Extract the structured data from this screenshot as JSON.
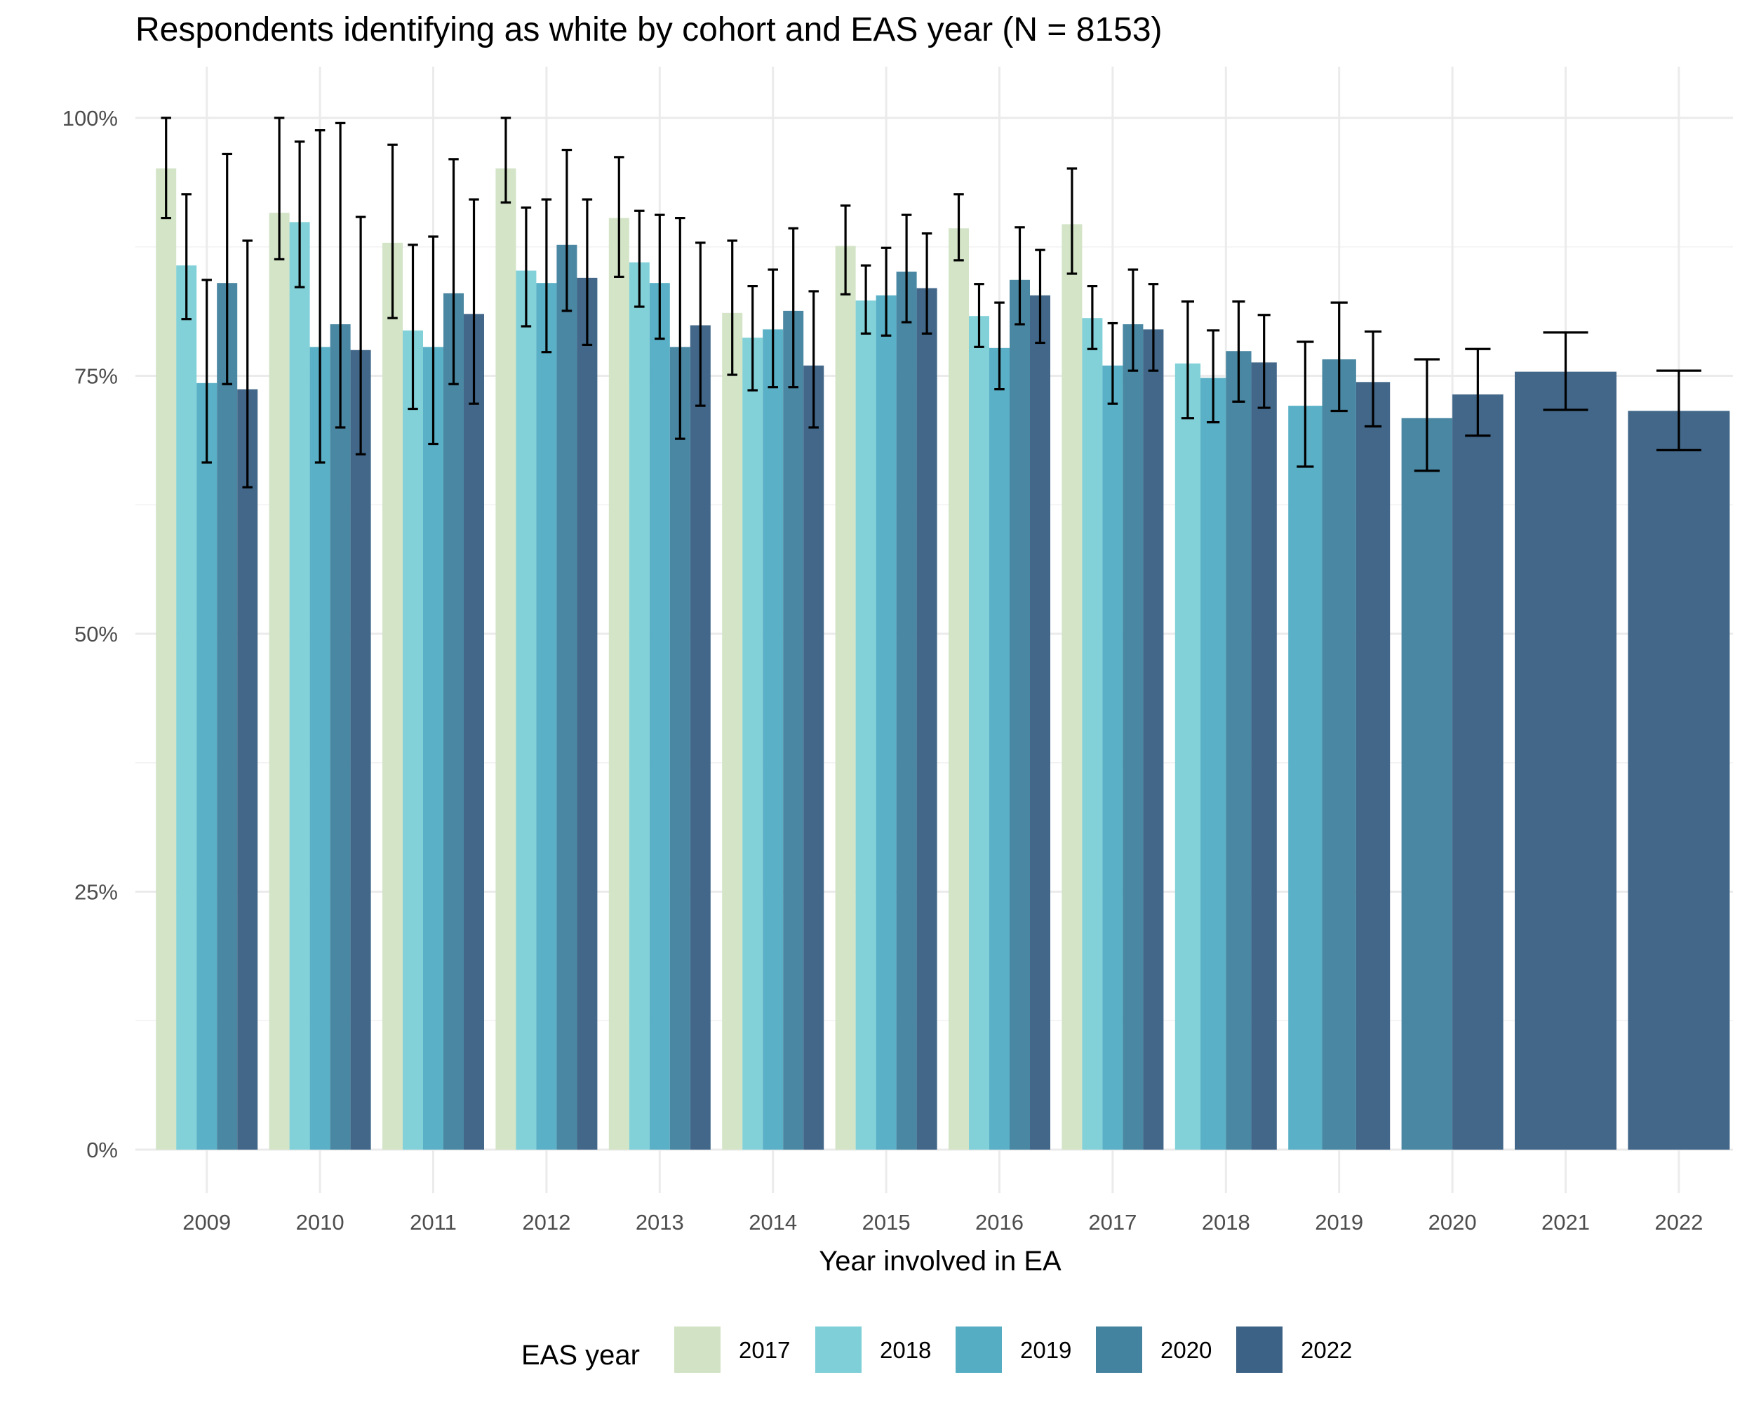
{
  "chart_data": {
    "type": "bar",
    "title": "Respondents identifying as white by cohort and EAS year (N = 8153)",
    "xlabel": "Year involved in EA",
    "ylabel": "",
    "ylim": [
      0,
      1
    ],
    "y_ticks": [
      {
        "value": 0,
        "label": "0%"
      },
      {
        "value": 0.25,
        "label": "25%"
      },
      {
        "value": 0.5,
        "label": "50%"
      },
      {
        "value": 0.75,
        "label": "75%"
      },
      {
        "value": 1.0,
        "label": "100%"
      }
    ],
    "grid": true,
    "legend": {
      "title": "EAS year",
      "position": "bottom"
    },
    "categories": [
      "2009",
      "2010",
      "2011",
      "2012",
      "2013",
      "2014",
      "2015",
      "2016",
      "2017",
      "2018",
      "2019",
      "2020",
      "2021",
      "2022"
    ],
    "series": [
      {
        "name": "2017",
        "color": "#d2e3c5",
        "values": [
          0.951,
          0.908,
          0.879,
          0.951,
          0.903,
          0.811,
          0.876,
          0.893,
          0.897,
          null,
          null,
          null,
          null,
          null
        ],
        "ci": [
          [
            0.903,
            1.0
          ],
          [
            0.863,
            1.0
          ],
          [
            0.806,
            0.974
          ],
          [
            0.918,
            1.0
          ],
          [
            0.846,
            0.962
          ],
          [
            0.751,
            0.881
          ],
          [
            0.829,
            0.915
          ],
          [
            0.862,
            0.926
          ],
          [
            0.849,
            0.951
          ],
          null,
          null,
          null,
          null,
          null
        ]
      },
      {
        "name": "2018",
        "color": "#7ecfd7",
        "values": [
          0.857,
          0.899,
          0.794,
          0.852,
          0.86,
          0.787,
          0.823,
          0.808,
          0.806,
          0.762,
          null,
          null,
          null,
          null
        ],
        "ci": [
          [
            0.805,
            0.926
          ],
          [
            0.836,
            0.977
          ],
          [
            0.718,
            0.877
          ],
          [
            0.798,
            0.913
          ],
          [
            0.817,
            0.91
          ],
          [
            0.736,
            0.837
          ],
          [
            0.791,
            0.857
          ],
          [
            0.778,
            0.839
          ],
          [
            0.776,
            0.837
          ],
          [
            0.709,
            0.822
          ],
          null,
          null,
          null,
          null
        ]
      },
      {
        "name": "2019",
        "color": "#55adc4",
        "values": [
          0.743,
          0.778,
          0.778,
          0.84,
          0.84,
          0.795,
          0.828,
          0.777,
          0.76,
          0.748,
          0.721,
          null,
          null,
          null
        ],
        "ci": [
          [
            0.666,
            0.843
          ],
          [
            0.666,
            0.988
          ],
          [
            0.684,
            0.885
          ],
          [
            0.773,
            0.921
          ],
          [
            0.786,
            0.906
          ],
          [
            0.739,
            0.853
          ],
          [
            0.789,
            0.874
          ],
          [
            0.737,
            0.821
          ],
          [
            0.723,
            0.801
          ],
          [
            0.705,
            0.794
          ],
          [
            0.662,
            0.783
          ],
          null,
          null,
          null
        ]
      },
      {
        "name": "2020",
        "color": "#44839f",
        "values": [
          0.84,
          0.8,
          0.83,
          0.877,
          0.778,
          0.813,
          0.851,
          0.843,
          0.8,
          0.774,
          0.766,
          0.709,
          null,
          null
        ],
        "ci": [
          [
            0.742,
            0.965
          ],
          [
            0.7,
            0.995
          ],
          [
            0.742,
            0.96
          ],
          [
            0.813,
            0.969
          ],
          [
            0.689,
            0.903
          ],
          [
            0.739,
            0.893
          ],
          [
            0.802,
            0.906
          ],
          [
            0.8,
            0.894
          ],
          [
            0.755,
            0.853
          ],
          [
            0.725,
            0.822
          ],
          [
            0.716,
            0.821
          ],
          [
            0.658,
            0.766
          ],
          null,
          null
        ]
      },
      {
        "name": "2022",
        "color": "#3c6285",
        "values": [
          0.737,
          0.775,
          0.81,
          0.845,
          0.799,
          0.76,
          0.835,
          0.828,
          0.795,
          0.763,
          0.744,
          0.732,
          0.754,
          0.716
        ],
        "ci": [
          [
            0.642,
            0.881
          ],
          [
            0.674,
            0.904
          ],
          [
            0.723,
            0.921
          ],
          [
            0.78,
            0.921
          ],
          [
            0.721,
            0.879
          ],
          [
            0.7,
            0.832
          ],
          [
            0.791,
            0.888
          ],
          [
            0.782,
            0.872
          ],
          [
            0.755,
            0.839
          ],
          [
            0.719,
            0.809
          ],
          [
            0.701,
            0.793
          ],
          [
            0.692,
            0.776
          ],
          [
            0.717,
            0.792
          ],
          [
            0.678,
            0.755
          ]
        ]
      }
    ]
  }
}
